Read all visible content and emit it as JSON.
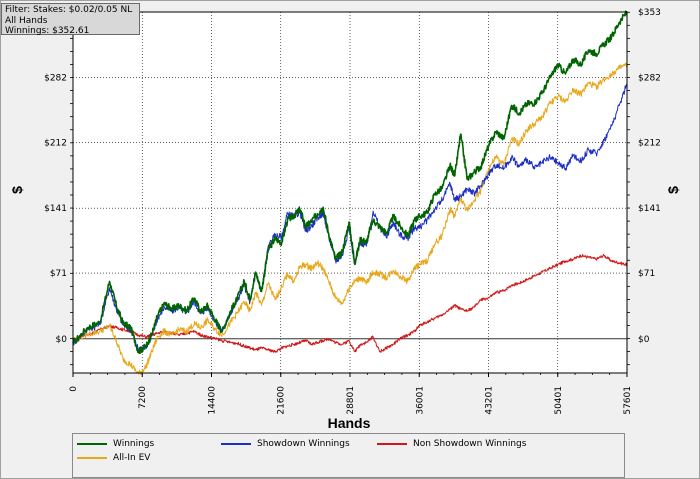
{
  "filter": {
    "line1": "Filter: Stakes: $0.02/0.05 NL",
    "line2": "All Hands",
    "line3": "Winnings: $352.61"
  },
  "chart_data": {
    "type": "line",
    "xlabel": "Hands",
    "ylabel": "$",
    "xlim": [
      0,
      57601
    ],
    "ylim": [
      -37,
      353
    ],
    "x_ticks": [
      0,
      7200,
      14400,
      21600,
      28801,
      36001,
      43201,
      50401,
      57601
    ],
    "y_ticks": [
      0,
      71,
      141,
      212,
      282,
      353
    ],
    "y_tick_labels": [
      "$0",
      "$71",
      "$141",
      "$212",
      "$282",
      "$353"
    ],
    "grid": true,
    "legend_position": "bottom",
    "series": [
      {
        "name": "Winnings",
        "color": "#006400",
        "x": [
          0,
          1500,
          2800,
          3800,
          4500,
          5200,
          6000,
          6800,
          7600,
          8200,
          8800,
          9500,
          10300,
          11000,
          11800,
          12600,
          13300,
          14000,
          14800,
          15500,
          16400,
          17100,
          17800,
          18400,
          19000,
          19600,
          20300,
          21000,
          21700,
          22300,
          23000,
          23600,
          24200,
          24800,
          25400,
          26000,
          26600,
          27300,
          28000,
          28700,
          29300,
          29900,
          30500,
          31200,
          31900,
          32600,
          33300,
          34000,
          34800,
          35500,
          36001,
          36800,
          37600,
          38400,
          39200,
          39700,
          40300,
          41000,
          41700,
          42400,
          43201,
          44000,
          44800,
          45600,
          46400,
          47200,
          48000,
          48800,
          49600,
          50401,
          51200,
          52000,
          52800,
          53600,
          54400,
          55200,
          56000,
          56800,
          57601
        ],
        "y": [
          -5,
          12,
          18,
          62,
          36,
          17,
          12,
          -14,
          -8,
          5,
          25,
          38,
          32,
          36,
          30,
          44,
          29,
          36,
          20,
          8,
          30,
          44,
          62,
          43,
          72,
          51,
          96,
          108,
          104,
          128,
          133,
          140,
          121,
          127,
          135,
          142,
          113,
          86,
          94,
          126,
          82,
          108,
          104,
          128,
          121,
          114,
          132,
          122,
          111,
          128,
          132,
          136,
          156,
          163,
          187,
          176,
          221,
          172,
          180,
          186,
          208,
          224,
          216,
          252,
          244,
          254,
          255,
          266,
          282,
          296,
          286,
          302,
          296,
          312,
          308,
          318,
          326,
          342,
          353
        ]
      },
      {
        "name": "Showdown Winnings",
        "color": "#1c2fc2",
        "x": [
          0,
          1500,
          2800,
          3800,
          4500,
          5200,
          6000,
          6800,
          7600,
          8200,
          8800,
          9500,
          10300,
          11000,
          11800,
          12600,
          13300,
          14000,
          14800,
          15500,
          16400,
          17100,
          17800,
          18400,
          19000,
          19600,
          20300,
          21000,
          21700,
          22300,
          23000,
          23600,
          24200,
          24800,
          25400,
          26000,
          26600,
          27300,
          28000,
          28700,
          29300,
          29900,
          30500,
          31200,
          31900,
          32600,
          33300,
          34000,
          34800,
          35500,
          36001,
          36800,
          37600,
          38400,
          39200,
          39700,
          40300,
          41000,
          41700,
          42400,
          43201,
          44000,
          44800,
          45600,
          46400,
          47200,
          48000,
          48800,
          49600,
          50401,
          51200,
          52000,
          52800,
          53600,
          54400,
          55200,
          56000,
          56800,
          57601
        ],
        "y": [
          -5,
          10,
          15,
          55,
          32,
          15,
          10,
          -12,
          -8,
          3,
          22,
          34,
          30,
          34,
          28,
          40,
          27,
          34,
          18,
          8,
          28,
          42,
          58,
          40,
          70,
          52,
          100,
          112,
          110,
          135,
          132,
          137,
          116,
          122,
          130,
          136,
          110,
          84,
          90,
          120,
          80,
          104,
          100,
          138,
          120,
          110,
          126,
          112,
          108,
          120,
          120,
          128,
          140,
          150,
          168,
          150,
          154,
          162,
          157,
          165,
          178,
          188,
          184,
          196,
          186,
          194,
          184,
          190,
          196,
          190,
          184,
          198,
          192,
          204,
          200,
          214,
          230,
          252,
          276
        ]
      },
      {
        "name": "All-In EV",
        "color": "#e8a81c",
        "x": [
          0,
          1500,
          2800,
          3800,
          4500,
          5200,
          6000,
          6800,
          7600,
          8200,
          8800,
          9500,
          10300,
          11000,
          11800,
          12600,
          13300,
          14000,
          14800,
          15500,
          16400,
          17100,
          17800,
          18400,
          19000,
          19600,
          20300,
          21000,
          21700,
          22300,
          23000,
          23600,
          24200,
          24800,
          25400,
          26000,
          26600,
          27300,
          28000,
          28700,
          29300,
          29900,
          30500,
          31200,
          31900,
          32600,
          33300,
          34000,
          34800,
          35500,
          36001,
          36800,
          37600,
          38400,
          39200,
          39700,
          40300,
          41000,
          41700,
          42400,
          43201,
          44000,
          44800,
          45600,
          46400,
          47200,
          48000,
          48800,
          49600,
          50401,
          51200,
          52000,
          52800,
          53600,
          54400,
          55200,
          56000,
          56800,
          57601
        ],
        "y": [
          -3,
          5,
          8,
          14,
          -2,
          -22,
          -28,
          -38,
          -30,
          -14,
          2,
          8,
          4,
          10,
          8,
          16,
          12,
          20,
          10,
          4,
          18,
          28,
          40,
          30,
          50,
          36,
          60,
          42,
          56,
          70,
          62,
          78,
          80,
          76,
          82,
          76,
          62,
          44,
          38,
          55,
          62,
          66,
          60,
          72,
          70,
          66,
          74,
          68,
          62,
          76,
          80,
          84,
          102,
          112,
          140,
          132,
          152,
          138,
          150,
          160,
          184,
          196,
          188,
          216,
          210,
          226,
          232,
          240,
          254,
          262,
          256,
          270,
          264,
          276,
          272,
          280,
          286,
          292,
          296
        ]
      },
      {
        "name": "Non Showdown Winnings",
        "color": "#d01818",
        "x": [
          0,
          1500,
          2800,
          3800,
          4500,
          5200,
          6000,
          6800,
          7600,
          8200,
          8800,
          9500,
          10300,
          11000,
          11800,
          12600,
          13300,
          14000,
          14800,
          15500,
          16400,
          17100,
          17800,
          18400,
          19000,
          19600,
          20300,
          21000,
          21700,
          22300,
          23000,
          23600,
          24200,
          24800,
          25400,
          26000,
          26600,
          27300,
          28000,
          28700,
          29300,
          29900,
          30500,
          31200,
          31900,
          32600,
          33300,
          34000,
          34800,
          35500,
          36001,
          36800,
          37600,
          38400,
          39200,
          39700,
          40300,
          41000,
          41700,
          42400,
          43201,
          44000,
          44800,
          45600,
          46400,
          47200,
          48000,
          48800,
          49600,
          50401,
          51200,
          52000,
          52800,
          53600,
          54400,
          55200,
          56000,
          56800,
          57601
        ],
        "y": [
          0,
          4,
          10,
          14,
          12,
          10,
          8,
          4,
          2,
          4,
          6,
          8,
          6,
          4,
          6,
          8,
          4,
          2,
          0,
          -2,
          -4,
          -5,
          -8,
          -10,
          -12,
          -10,
          -12,
          -14,
          -10,
          -8,
          -6,
          -4,
          -2,
          -6,
          -4,
          -2,
          0,
          -4,
          -6,
          -2,
          -14,
          -6,
          -4,
          2,
          -14,
          -10,
          -6,
          0,
          4,
          8,
          14,
          18,
          22,
          26,
          32,
          36,
          32,
          30,
          34,
          42,
          44,
          50,
          52,
          58,
          60,
          64,
          68,
          72,
          76,
          80,
          84,
          86,
          90,
          88,
          86,
          90,
          84,
          82,
          80
        ]
      }
    ]
  }
}
